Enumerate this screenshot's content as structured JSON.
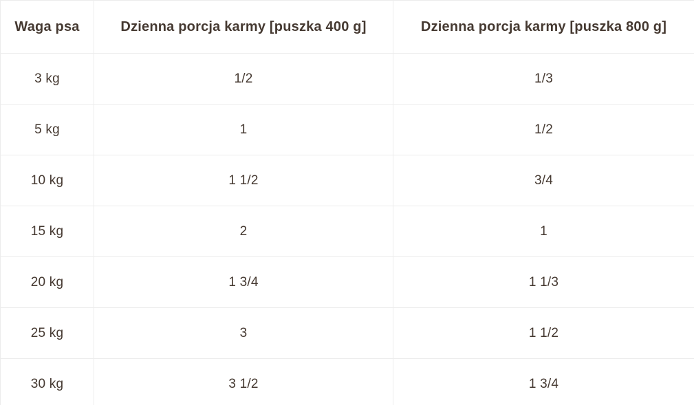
{
  "colors": {
    "text": "#453931",
    "border": "#ececec",
    "background": "#ffffff"
  },
  "chart_data": {
    "type": "table",
    "columns": [
      "Waga psa",
      "Dzienna porcja karmy [puszka 400 g]",
      "Dzienna porcja karmy [puszka 800 g]"
    ],
    "rows": [
      [
        "3 kg",
        "1/2",
        "1/3"
      ],
      [
        "5 kg",
        "1",
        "1/2"
      ],
      [
        "10 kg",
        "1 1/2",
        "3/4"
      ],
      [
        "15 kg",
        "2",
        "1"
      ],
      [
        "20 kg",
        "1 3/4",
        "1 1/3"
      ],
      [
        "25 kg",
        "3",
        "1 1/2"
      ],
      [
        "30 kg",
        "3 1/2",
        "1 3/4"
      ]
    ]
  }
}
